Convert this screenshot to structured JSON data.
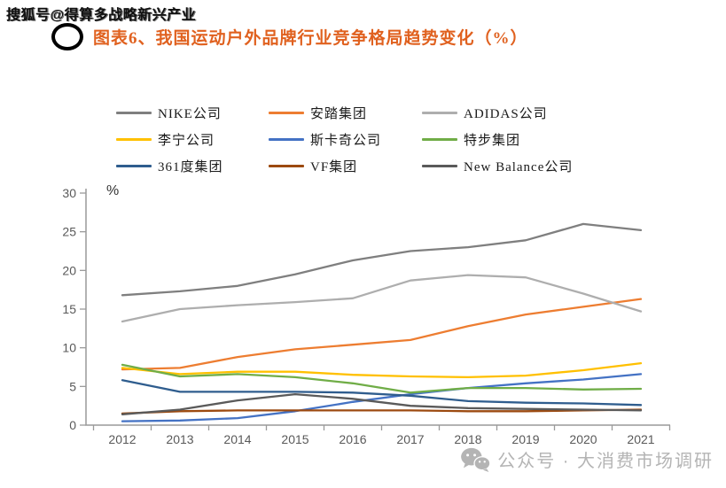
{
  "watermark_top": "搜狐号@得算多战略新兴产业",
  "header": {
    "title": "图表6、我国运动户外品牌行业竞争格局趋势变化（%）"
  },
  "watermark_bottom": {
    "icon": "wechat-icon",
    "text": "公众号 · 大消费市场调研"
  },
  "colors": {
    "title_accent": "#E0611F",
    "axis": "#9a9a9a",
    "tick_label": "#595959",
    "watermark_gray": "#b4b4b4"
  },
  "chart_data": {
    "type": "line",
    "title": "图表6、我国运动户外品牌行业竞争格局趋势变化（%）",
    "unit_label": "%",
    "xlabel": "",
    "ylabel": "%",
    "categories": [
      "2012",
      "2013",
      "2014",
      "2015",
      "2016",
      "2017",
      "2018",
      "2019",
      "2020",
      "2021"
    ],
    "ylim": [
      0,
      30
    ],
    "yticks": [
      0,
      5,
      10,
      15,
      20,
      25,
      30
    ],
    "grid": false,
    "legend_position": "top",
    "series": [
      {
        "name": "NIKE公司",
        "color": "#7F7F7F",
        "values": [
          16.8,
          17.3,
          18.0,
          19.5,
          21.3,
          22.5,
          23.0,
          23.9,
          26.0,
          25.2
        ]
      },
      {
        "name": "安踏集团",
        "color": "#ED7D31",
        "values": [
          7.2,
          7.4,
          8.8,
          9.8,
          10.4,
          11.0,
          12.8,
          14.3,
          15.3,
          16.3
        ]
      },
      {
        "name": "ADIDAS公司",
        "color": "#AEAEAE",
        "values": [
          13.4,
          15.0,
          15.5,
          15.9,
          16.4,
          18.7,
          19.4,
          19.1,
          17.0,
          14.7
        ]
      },
      {
        "name": "李宁公司",
        "color": "#FFC000",
        "values": [
          7.4,
          6.6,
          6.9,
          6.9,
          6.5,
          6.3,
          6.2,
          6.4,
          7.1,
          8.0
        ]
      },
      {
        "name": "斯卡奇公司",
        "color": "#4472C4",
        "values": [
          0.5,
          0.6,
          0.9,
          1.8,
          3.0,
          4.0,
          4.8,
          5.4,
          5.9,
          6.6
        ]
      },
      {
        "name": "特步集团",
        "color": "#70AD47",
        "values": [
          7.8,
          6.3,
          6.6,
          6.2,
          5.4,
          4.2,
          4.8,
          4.8,
          4.6,
          4.7
        ]
      },
      {
        "name": "361度集团",
        "color": "#2F5D8E",
        "values": [
          5.8,
          4.3,
          4.3,
          4.3,
          4.2,
          3.8,
          3.1,
          2.9,
          2.8,
          2.6
        ]
      },
      {
        "name": "VF集团",
        "color": "#9C4A10",
        "values": [
          1.5,
          1.8,
          1.9,
          1.9,
          1.9,
          1.9,
          1.8,
          1.8,
          1.9,
          2.0
        ]
      },
      {
        "name": "New Balance公司",
        "color": "#5A5A5A",
        "values": [
          1.4,
          2.0,
          3.2,
          4.0,
          3.4,
          2.5,
          2.2,
          2.1,
          2.0,
          1.9
        ]
      }
    ]
  }
}
